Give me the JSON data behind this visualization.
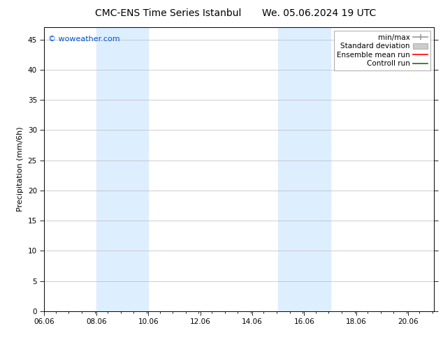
{
  "title_left": "CMC-ENS Time Series Istanbul",
  "title_right": "We. 05.06.2024 19 UTC",
  "ylabel": "Precipitation (mm/6h)",
  "xlim": [
    6.06,
    21.06
  ],
  "ylim": [
    0,
    47
  ],
  "yticks": [
    0,
    5,
    10,
    15,
    20,
    25,
    30,
    35,
    40,
    45
  ],
  "xticks": [
    6.06,
    8.06,
    10.06,
    12.06,
    14.06,
    16.06,
    18.06,
    20.06
  ],
  "xticklabels": [
    "06.06",
    "08.06",
    "10.06",
    "12.06",
    "14.06",
    "16.06",
    "18.06",
    "20.06"
  ],
  "watermark": "© woweather.com",
  "watermark_color": "#0055cc",
  "background_color": "#ffffff",
  "shaded_regions": [
    {
      "xmin": 8.06,
      "xmax": 10.06,
      "color": "#ddeeff"
    },
    {
      "xmin": 15.06,
      "xmax": 17.06,
      "color": "#ddeeff"
    }
  ],
  "legend_entries": [
    {
      "label": "min/max",
      "type": "minmax",
      "color": "#999999"
    },
    {
      "label": "Standard deviation",
      "type": "stddev",
      "color": "#cccccc"
    },
    {
      "label": "Ensemble mean run",
      "type": "line",
      "color": "#ff0000"
    },
    {
      "label": "Controll run",
      "type": "line",
      "color": "#008000"
    }
  ],
  "title_fontsize": 10,
  "tick_fontsize": 7.5,
  "ylabel_fontsize": 8,
  "legend_fontsize": 7.5,
  "watermark_fontsize": 8,
  "grid_color": "#bbbbbb",
  "grid_linewidth": 0.5
}
